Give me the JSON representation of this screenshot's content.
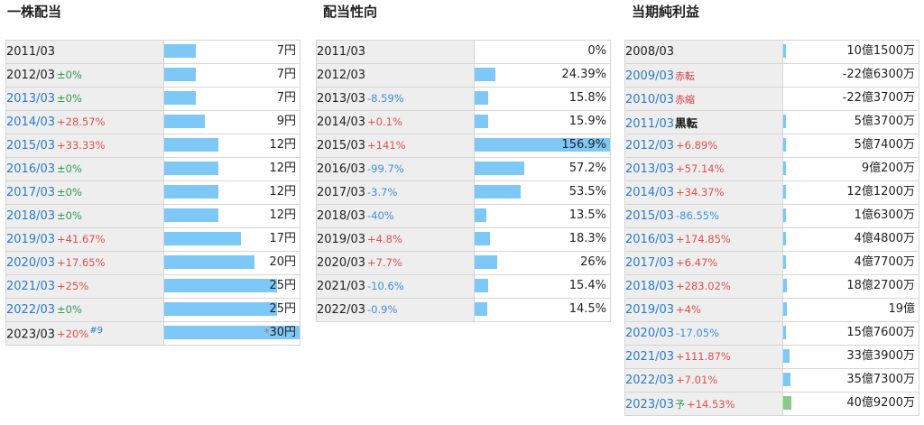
{
  "dividend": {
    "title": "一株配当",
    "rows": [
      {
        "year": "2011/03",
        "change": "",
        "dir": "",
        "note": "",
        "value": 7,
        "value_label": "7円",
        "asterisk": "",
        "link": false
      },
      {
        "year": "2012/03",
        "change": "±0%",
        "dir": "flat",
        "note": "",
        "value": 7,
        "value_label": "7円",
        "asterisk": "",
        "link": false
      },
      {
        "year": "2013/03",
        "change": "±0%",
        "dir": "flat",
        "note": "",
        "value": 7,
        "value_label": "7円",
        "asterisk": "",
        "link": true
      },
      {
        "year": "2014/03",
        "change": "+28.57%",
        "dir": "up",
        "note": "",
        "value": 9,
        "value_label": "9円",
        "asterisk": "",
        "link": true
      },
      {
        "year": "2015/03",
        "change": "+33.33%",
        "dir": "up",
        "note": "",
        "value": 12,
        "value_label": "12円",
        "asterisk": "",
        "link": true
      },
      {
        "year": "2016/03",
        "change": "±0%",
        "dir": "flat",
        "note": "",
        "value": 12,
        "value_label": "12円",
        "asterisk": "",
        "link": true
      },
      {
        "year": "2017/03",
        "change": "±0%",
        "dir": "flat",
        "note": "",
        "value": 12,
        "value_label": "12円",
        "asterisk": "",
        "link": true
      },
      {
        "year": "2018/03",
        "change": "±0%",
        "dir": "flat",
        "note": "",
        "value": 12,
        "value_label": "12円",
        "asterisk": "",
        "link": true
      },
      {
        "year": "2019/03",
        "change": "+41.67%",
        "dir": "up",
        "note": "",
        "value": 17,
        "value_label": "17円",
        "asterisk": "",
        "link": true
      },
      {
        "year": "2020/03",
        "change": "+17.65%",
        "dir": "up",
        "note": "",
        "value": 20,
        "value_label": "20円",
        "asterisk": "",
        "link": true
      },
      {
        "year": "2021/03",
        "change": "+25%",
        "dir": "up",
        "note": "",
        "value": 25,
        "value_label": "25円",
        "asterisk": "",
        "link": true
      },
      {
        "year": "2022/03",
        "change": "±0%",
        "dir": "flat",
        "note": "",
        "value": 25,
        "value_label": "25円",
        "asterisk": "",
        "link": true
      },
      {
        "year": "2023/03",
        "change": "+20%",
        "dir": "up",
        "note": "#9",
        "value": 30,
        "value_label": "30円",
        "asterisk": "*",
        "link": false
      }
    ]
  },
  "payout": {
    "title": "配当性向",
    "rows": [
      {
        "year": "2011/03",
        "change": "",
        "dir": "",
        "value": 0,
        "value_label": "0%"
      },
      {
        "year": "2012/03",
        "change": "",
        "dir": "",
        "value": 24.39,
        "value_label": "24.39%"
      },
      {
        "year": "2013/03",
        "change": "-8.59%",
        "dir": "down",
        "value": 15.8,
        "value_label": "15.8%"
      },
      {
        "year": "2014/03",
        "change": "+0.1%",
        "dir": "up",
        "value": 15.9,
        "value_label": "15.9%"
      },
      {
        "year": "2015/03",
        "change": "+141%",
        "dir": "up",
        "value": 156.9,
        "value_label": "156.9%"
      },
      {
        "year": "2016/03",
        "change": "-99.7%",
        "dir": "down",
        "value": 57.2,
        "value_label": "57.2%"
      },
      {
        "year": "2017/03",
        "change": "-3.7%",
        "dir": "down",
        "value": 53.5,
        "value_label": "53.5%"
      },
      {
        "year": "2018/03",
        "change": "-40%",
        "dir": "down",
        "value": 13.5,
        "value_label": "13.5%"
      },
      {
        "year": "2019/03",
        "change": "+4.8%",
        "dir": "up",
        "value": 18.3,
        "value_label": "18.3%"
      },
      {
        "year": "2020/03",
        "change": "+7.7%",
        "dir": "up",
        "value": 26,
        "value_label": "26%"
      },
      {
        "year": "2021/03",
        "change": "-10.6%",
        "dir": "down",
        "value": 15.4,
        "value_label": "15.4%"
      },
      {
        "year": "2022/03",
        "change": "-0.9%",
        "dir": "down",
        "value": 14.5,
        "value_label": "14.5%"
      }
    ]
  },
  "profit": {
    "title": "当期純利益",
    "rows": [
      {
        "year": "2008/03",
        "change": "",
        "dir": "",
        "mark": "",
        "mark_style": "",
        "value": 10.15,
        "value_label": "10億1500万",
        "link": false,
        "forecast": false
      },
      {
        "year": "2009/03",
        "change": "",
        "dir": "",
        "mark": "赤転",
        "mark_style": "red",
        "value": -22.63,
        "value_label": "-22億6300万",
        "link": true,
        "forecast": false
      },
      {
        "year": "2010/03",
        "change": "",
        "dir": "",
        "mark": "赤縮",
        "mark_style": "red",
        "value": -22.37,
        "value_label": "-22億3700万",
        "link": true,
        "forecast": false
      },
      {
        "year": "2011/03",
        "change": "",
        "dir": "",
        "mark": "黒転",
        "mark_style": "black",
        "value": 5.37,
        "value_label": "5億3700万",
        "link": true,
        "forecast": false
      },
      {
        "year": "2012/03",
        "change": "+6.89%",
        "dir": "up",
        "mark": "",
        "mark_style": "",
        "value": 5.74,
        "value_label": "5億7400万",
        "link": true,
        "forecast": false
      },
      {
        "year": "2013/03",
        "change": "+57.14%",
        "dir": "up",
        "mark": "",
        "mark_style": "",
        "value": 9.02,
        "value_label": "9億200万",
        "link": true,
        "forecast": false
      },
      {
        "year": "2014/03",
        "change": "+34.37%",
        "dir": "up",
        "mark": "",
        "mark_style": "",
        "value": 12.12,
        "value_label": "12億1200万",
        "link": true,
        "forecast": false
      },
      {
        "year": "2015/03",
        "change": "-86.55%",
        "dir": "down",
        "mark": "",
        "mark_style": "",
        "value": 1.63,
        "value_label": "1億6300万",
        "link": true,
        "forecast": false
      },
      {
        "year": "2016/03",
        "change": "+174.85%",
        "dir": "up",
        "mark": "",
        "mark_style": "",
        "value": 4.48,
        "value_label": "4億4800万",
        "link": true,
        "forecast": false
      },
      {
        "year": "2017/03",
        "change": "+6.47%",
        "dir": "up",
        "mark": "",
        "mark_style": "",
        "value": 4.77,
        "value_label": "4億7700万",
        "link": true,
        "forecast": false
      },
      {
        "year": "2018/03",
        "change": "+283.02%",
        "dir": "up",
        "mark": "",
        "mark_style": "",
        "value": 18.27,
        "value_label": "18億2700万",
        "link": true,
        "forecast": false
      },
      {
        "year": "2019/03",
        "change": "+4%",
        "dir": "up",
        "mark": "",
        "mark_style": "",
        "value": 19,
        "value_label": "19億",
        "link": true,
        "forecast": false
      },
      {
        "year": "2020/03",
        "change": "-17.05%",
        "dir": "down",
        "mark": "",
        "mark_style": "",
        "value": 15.76,
        "value_label": "15億7600万",
        "link": true,
        "forecast": false
      },
      {
        "year": "2021/03",
        "change": "+111.87%",
        "dir": "up",
        "mark": "",
        "mark_style": "",
        "value": 33.39,
        "value_label": "33億3900万",
        "link": true,
        "forecast": false
      },
      {
        "year": "2022/03",
        "change": "+7.01%",
        "dir": "up",
        "mark": "",
        "mark_style": "",
        "value": 35.73,
        "value_label": "35億7300万",
        "link": true,
        "forecast": false
      },
      {
        "year": "2023/03",
        "change": "+14.53%",
        "dir": "up",
        "mark": "予",
        "mark_style": "green",
        "value": 40.92,
        "value_label": "40億9200万",
        "link": true,
        "forecast": true
      }
    ]
  },
  "colors": {
    "bar": "#7dc8f6",
    "forecast_bar": "#8bc98b",
    "up": "#e0504c",
    "down": "#3f8fe0",
    "flat": "#2e9a52",
    "link": "#2a7ccc"
  }
}
